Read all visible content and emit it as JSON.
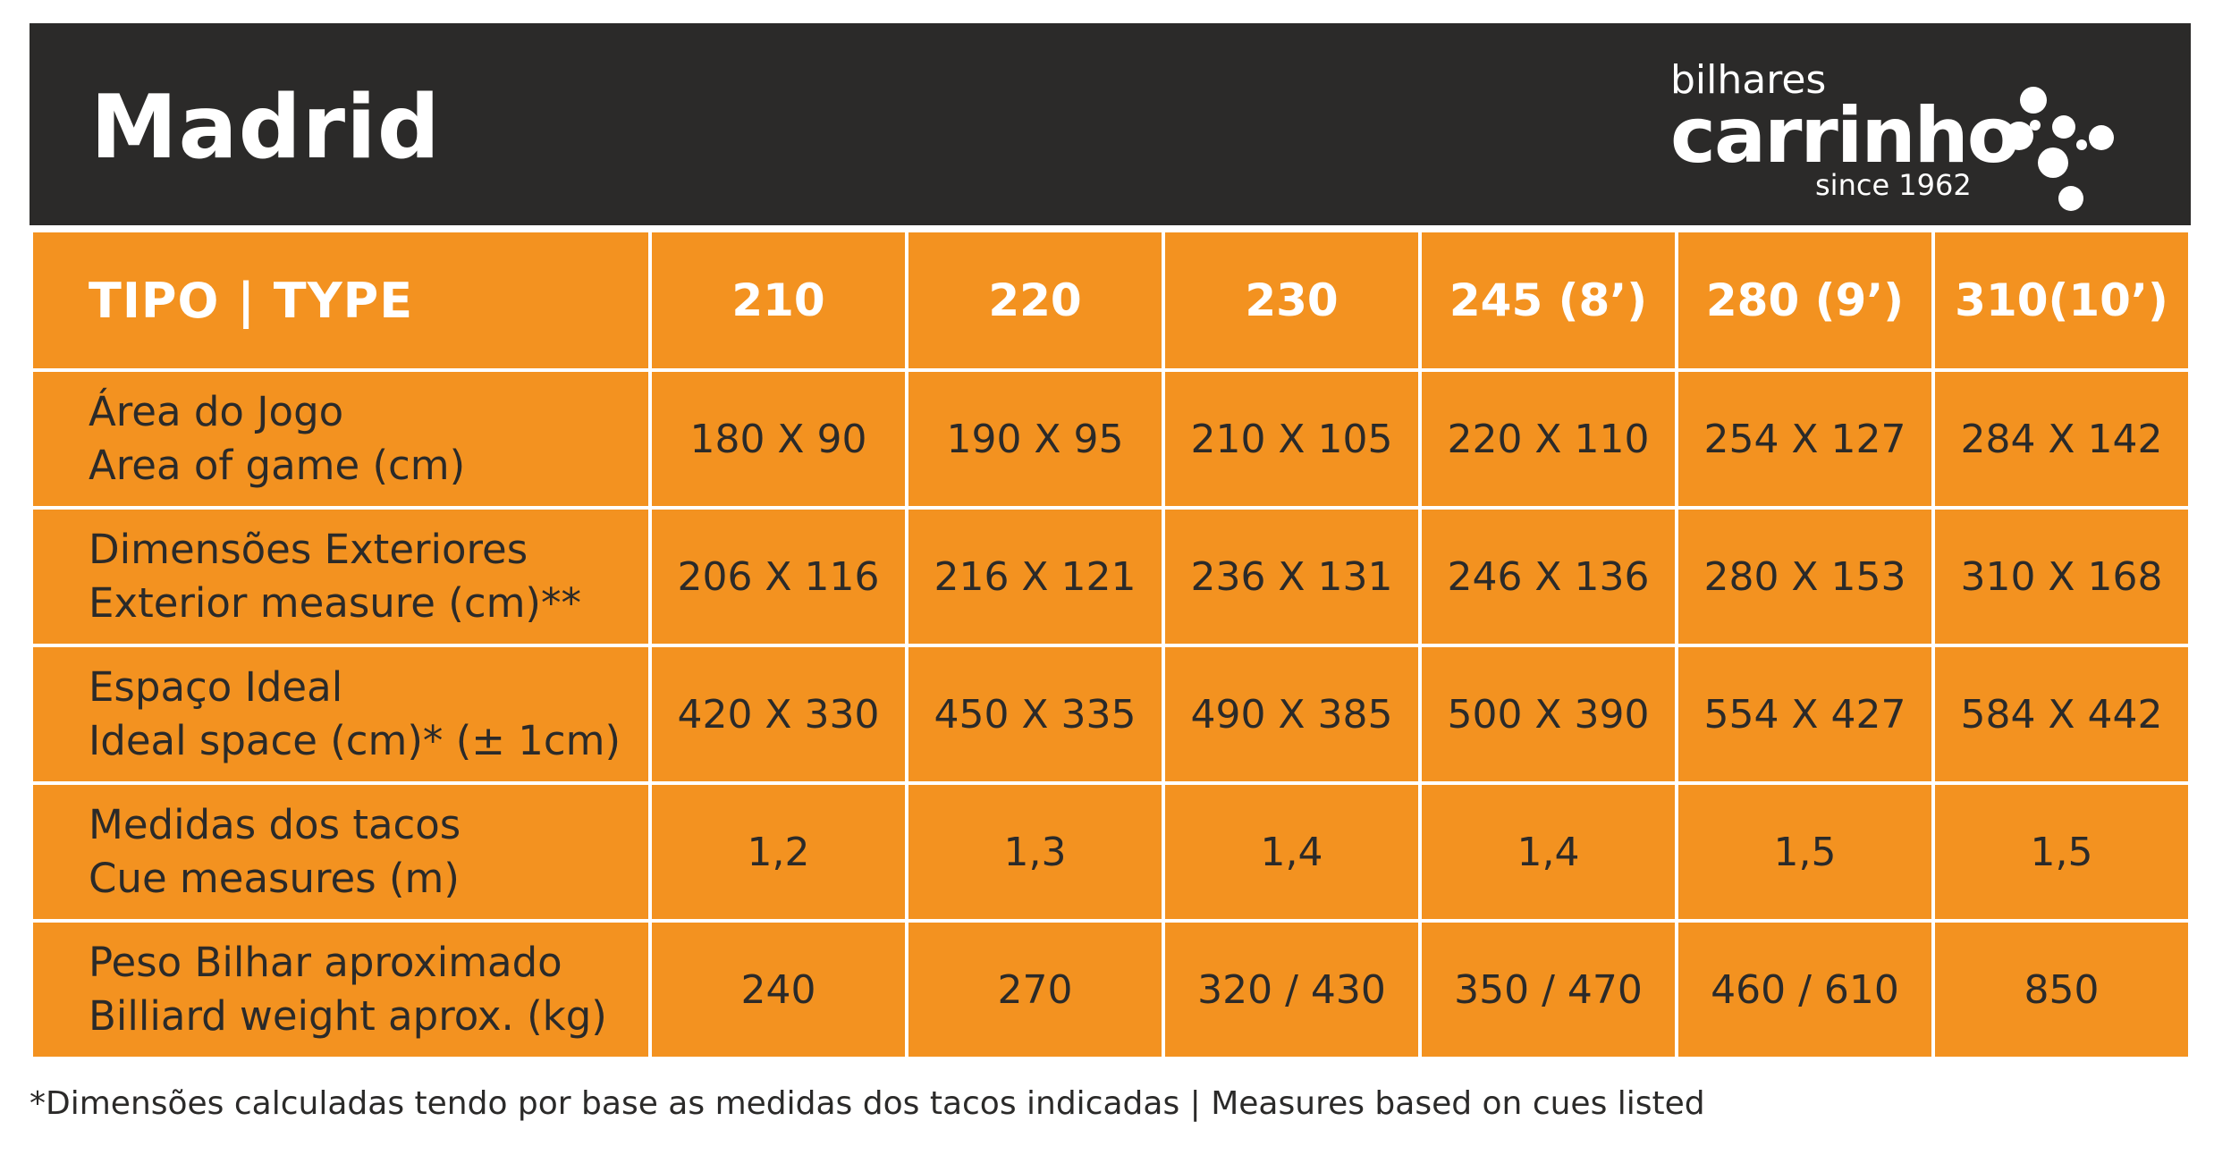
{
  "title": "Madrid",
  "logo": {
    "top_text": "bilhares",
    "main_text": "carrinho",
    "sub_text": "since 1962",
    "color": "#ffffff"
  },
  "colors": {
    "header_bg": "#2b2a29",
    "cell_bg": "#f39220",
    "text_dark": "#2b2a29",
    "text_light": "#ffffff"
  },
  "table": {
    "type_label": "TIPO | TYPE",
    "columns": [
      "210",
      "220",
      "230",
      "245 (8’)",
      "280 (9’)",
      "310(10’)"
    ],
    "rows": [
      {
        "label_pt": "Área do Jogo",
        "label_en": "Area of game (cm)",
        "values": [
          "180 X 90",
          "190 X 95",
          "210 X 105",
          "220 X 110",
          "254 X 127",
          "284 X 142"
        ]
      },
      {
        "label_pt": "Dimensões Exteriores",
        "label_en": "Exterior measure (cm)**",
        "values": [
          "206 X 116",
          "216 X 121",
          "236 X 131",
          "246 X 136",
          "280 X 153",
          "310 X 168"
        ]
      },
      {
        "label_pt": "Espaço Ideal",
        "label_en": "Ideal space (cm)* (± 1cm)",
        "values": [
          "420 X 330",
          "450 X 335",
          "490 X 385",
          "500 X 390",
          "554 X 427",
          "584 X 442"
        ]
      },
      {
        "label_pt": "Medidas dos tacos",
        "label_en": "Cue measures (m)",
        "values": [
          "1,2",
          "1,3",
          "1,4",
          "1,4",
          "1,5",
          "1,5"
        ]
      },
      {
        "label_pt": "Peso Bilhar aproximado",
        "label_en": "Billiard weight aprox. (kg)",
        "values": [
          "240",
          "270",
          "320 / 430",
          "350 / 470",
          "460 / 610",
          "850"
        ]
      }
    ]
  },
  "footnote": "*Dimensões calculadas tendo por base as medidas dos tacos indicadas | Measures based on cues listed"
}
